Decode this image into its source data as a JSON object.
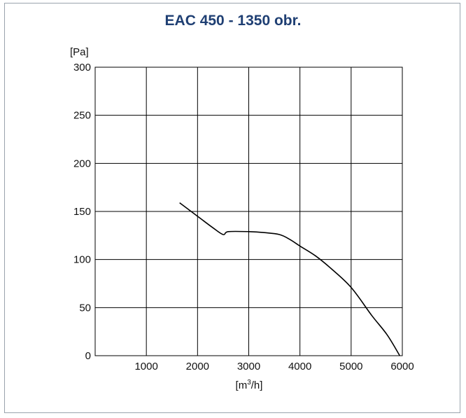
{
  "chart_data": {
    "type": "line",
    "title": "EAC 450 - 1350 obr.",
    "y_unit_label": "[Pa]",
    "x_unit_label_base": "[m",
    "x_unit_label_sup": "3",
    "x_unit_label_tail": "/h]",
    "xlim": [
      0,
      6000
    ],
    "ylim": [
      0,
      300
    ],
    "x_ticks": [
      1000,
      2000,
      3000,
      4000,
      5000,
      6000
    ],
    "x_tick_labels": [
      "1000",
      "2000",
      "3000",
      "4000",
      "5000",
      "6000"
    ],
    "y_ticks": [
      0,
      50,
      100,
      150,
      200,
      250,
      300
    ],
    "y_tick_labels": [
      "0",
      "50",
      "100",
      "150",
      "200",
      "250",
      "300"
    ],
    "grid": true,
    "series": [
      {
        "color": "#000000",
        "x": [
          1650,
          2000,
          2300,
          2500,
          2600,
          3000,
          3300,
          3600,
          3800,
          4000,
          4300,
          4600,
          5000,
          5400,
          5700,
          5950
        ],
        "y": [
          159,
          145,
          133,
          126,
          129,
          129,
          128,
          126,
          121,
          114,
          104,
          91,
          71,
          42,
          22,
          0
        ]
      }
    ]
  }
}
